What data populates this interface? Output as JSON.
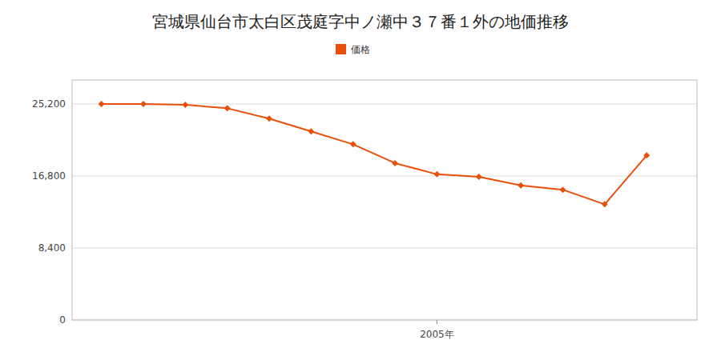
{
  "chart_data": {
    "type": "line",
    "title": "宮城県仙台市太白区茂庭字中ノ瀬中３７番１外の地価推移",
    "x": [
      1997,
      1998,
      1999,
      2000,
      2001,
      2002,
      2003,
      2004,
      2005,
      2006,
      2007,
      2008,
      2009,
      2010
    ],
    "series": [
      {
        "name": "価格",
        "color": "#E8500A",
        "marker": "diamond",
        "line_style": "solid",
        "values": [
          25200,
          25200,
          25100,
          24700,
          23500,
          22000,
          20500,
          18300,
          17000,
          16700,
          15700,
          15200,
          13500,
          19200
        ]
      }
    ],
    "xlim": [
      1996.3,
      2011.2
    ],
    "xticks": [
      {
        "value": 2005,
        "label": "2005年"
      }
    ],
    "ylim": [
      0,
      28000
    ],
    "yticks": [
      0,
      {
        "value": 8400,
        "label": "8,400"
      },
      {
        "value": 16800,
        "label": "16,800"
      },
      {
        "value": 25200,
        "label": "25,200"
      }
    ],
    "grid": "y",
    "legend": "top"
  }
}
